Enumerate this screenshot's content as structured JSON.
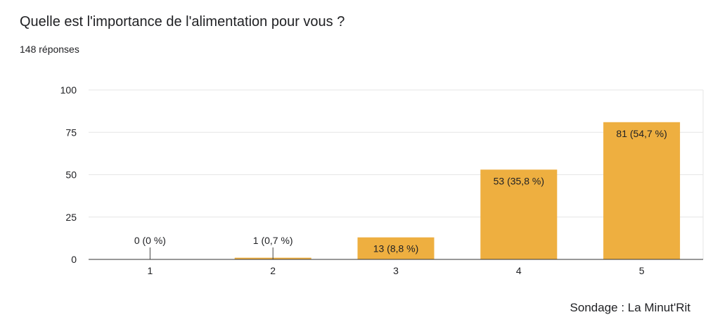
{
  "title": "Quelle est l'importance de l'alimentation pour vous ?",
  "subtitle": "148 réponses",
  "footer": "Sondage : La Minut'Rit",
  "colors": {
    "bar": "#eeaf40",
    "grid": "#e6e6e6",
    "axis": "#333333"
  },
  "chart_data": {
    "type": "bar",
    "categories": [
      "1",
      "2",
      "3",
      "4",
      "5"
    ],
    "values": [
      0,
      1,
      13,
      53,
      81
    ],
    "data_labels": [
      "0 (0 %)",
      "1 (0,7 %)",
      "13 (8,8 %)",
      "53 (35,8 %)",
      "81 (54,7 %)"
    ],
    "y_ticks": [
      "0",
      "25",
      "50",
      "75",
      "100"
    ],
    "ylim": [
      0,
      100
    ],
    "grid": true,
    "legend": "none"
  }
}
